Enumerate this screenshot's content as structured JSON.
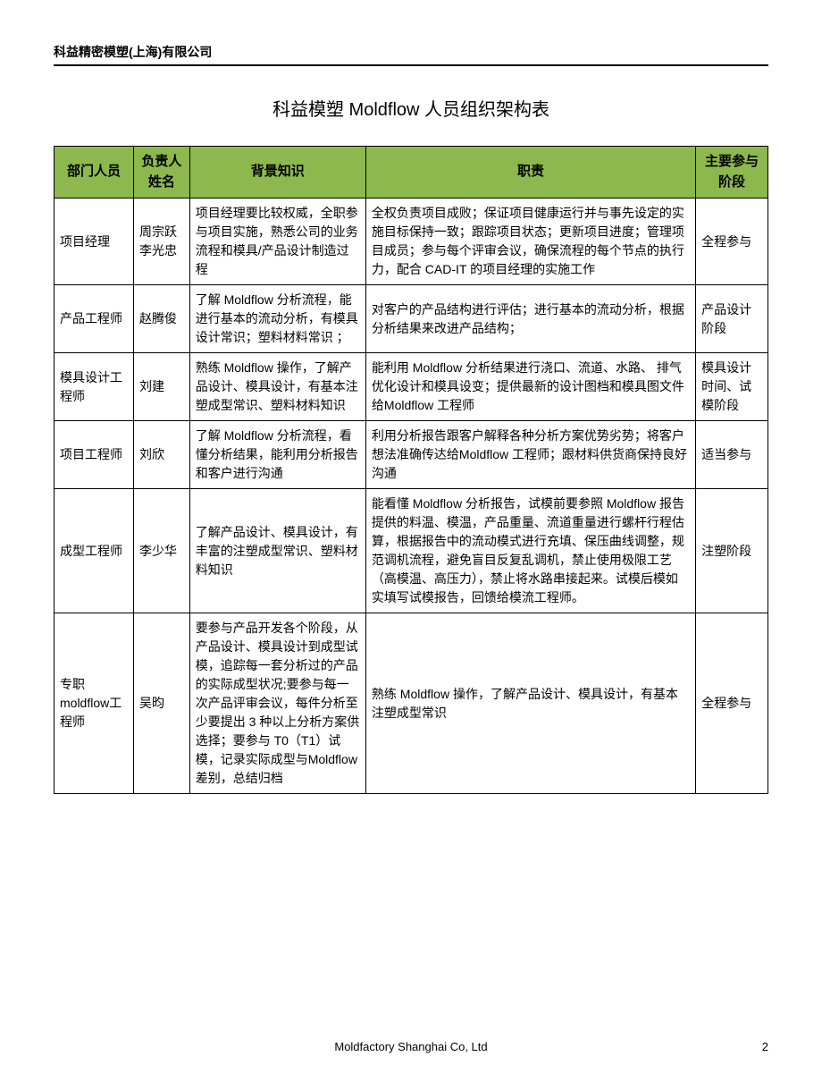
{
  "header": {
    "company": "科益精密模塑(上海)有限公司"
  },
  "title": "科益模塑 Moldflow 人员组织架构表",
  "table": {
    "columns": [
      "部门人员",
      "负责人姓名",
      "背景知识",
      "职责",
      "主要参与阶段"
    ],
    "rows": [
      {
        "role": "项目经理",
        "name": "周宗跃\n李光忠",
        "background": "项目经理要比较权威，全职参与项目实施，熟悉公司的业务流程和模具/产品设计制造过程",
        "responsibility": "全权负责项目成败；保证项目健康运行并与事先设定的实施目标保持一致；跟踪项目状态；更新项目进度；管理项目成员；参与每个评审会议，确保流程的每个节点的执行力，配合 CAD-IT 的项目经理的实施工作",
        "stage": "全程参与"
      },
      {
        "role": "产品工程师",
        "name": "赵腾俊",
        "background": "了解 Moldflow 分析流程，能进行基本的流动分析，有模具设计常识；塑料材料常识 ；",
        "responsibility": "对客户的产品结构进行评估；进行基本的流动分析，根据分析结果来改进产品结构；",
        "stage": "产品设计阶段"
      },
      {
        "role": "模具设计工程师",
        "name": "刘建",
        "background": "熟练 Moldflow 操作，了解产品设计、模具设计，有基本注塑成型常识、塑料材料知识",
        "responsibility": "能利用 Moldflow 分析结果进行浇口、流道、水路、 排气优化设计和模具设变；提供最新的设计图档和模具图文件给Moldflow 工程师",
        "stage": "模具设计时间、试模阶段"
      },
      {
        "role": "项目工程师",
        "name": "刘欣",
        "background": "了解 Moldflow 分析流程，看懂分析结果，能利用分析报告和客户进行沟通",
        "responsibility": "利用分析报告跟客户解释各种分析方案优势劣势；将客户想法准确传达给Moldflow 工程师；跟材料供货商保持良好沟通",
        "stage": "适当参与"
      },
      {
        "role": "成型工程师",
        "name": "李少华",
        "background": "了解产品设计、模具设计，有丰富的注塑成型常识、塑料材料知识",
        "responsibility": "能看懂 Moldflow 分析报告，试模前要参照 Moldflow 报告提供的料温、模温，产品重量、流道重量进行螺杆行程估算，根据报告中的流动模式进行充填、保压曲线调整，规范调机流程，避免盲目反复乱调机，禁止使用极限工艺（高模温、高压力），禁止将水路串接起来。试模后模如实填写试模报告，回馈给模流工程师。",
        "stage": "注塑阶段"
      },
      {
        "role": "专职moldflow工程师",
        "name": "吴昀",
        "background": "要参与产品开发各个阶段，从产品设计、模具设计到成型试模，追踪每一套分析过的产品的实际成型状况;要参与每一次产品评审会议，每件分析至少要提出 3 种以上分析方案供选择；要参与 T0（T1）试模，记录实际成型与Moldflow 差别，总结归档",
        "responsibility": "熟练 Moldflow 操作，了解产品设计、模具设计，有基本注塑成型常识",
        "stage": "全程参与"
      }
    ]
  },
  "footer": {
    "company": "Moldfactory Shanghai Co, Ltd",
    "page": "2"
  }
}
